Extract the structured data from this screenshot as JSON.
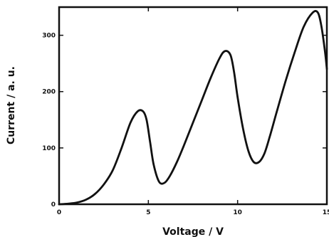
{
  "chart_data": {
    "type": "line",
    "title": "",
    "xlabel": "Voltage / V",
    "ylabel": "Current / a. u.",
    "xlim": [
      0,
      15
    ],
    "ylim": [
      0,
      350
    ],
    "xticks": [
      0,
      5,
      10,
      15
    ],
    "xtick_labels": [
      "0",
      "5",
      "10",
      "15"
    ],
    "yticks": [
      0,
      100,
      200,
      300
    ],
    "ytick_labels": [
      "0",
      "100",
      "200",
      "300"
    ],
    "grid": false,
    "legend": "none",
    "line_color": "#111111",
    "series": [
      {
        "x": [
          0,
          0.5,
          1.0,
          1.5,
          2.0,
          2.5,
          3.0,
          3.5,
          4.0,
          4.4,
          4.7,
          4.9,
          5.1,
          5.3,
          5.6,
          5.9,
          6.2,
          6.6,
          7.0,
          7.5,
          8.0,
          8.5,
          9.0,
          9.3,
          9.6,
          9.8,
          10.0,
          10.3,
          10.6,
          10.9,
          11.2,
          11.5,
          11.8,
          12.2,
          12.7,
          13.2,
          13.7,
          14.2,
          14.5,
          14.7,
          14.9,
          15.0
        ],
        "y": [
          0,
          1,
          3,
          8,
          18,
          35,
          60,
          100,
          145,
          165,
          165,
          150,
          110,
          70,
          40,
          38,
          50,
          75,
          105,
          145,
          185,
          225,
          260,
          272,
          265,
          235,
          190,
          135,
          95,
          75,
          75,
          90,
          120,
          165,
          220,
          270,
          315,
          340,
          340,
          315,
          270,
          240
        ]
      }
    ]
  }
}
